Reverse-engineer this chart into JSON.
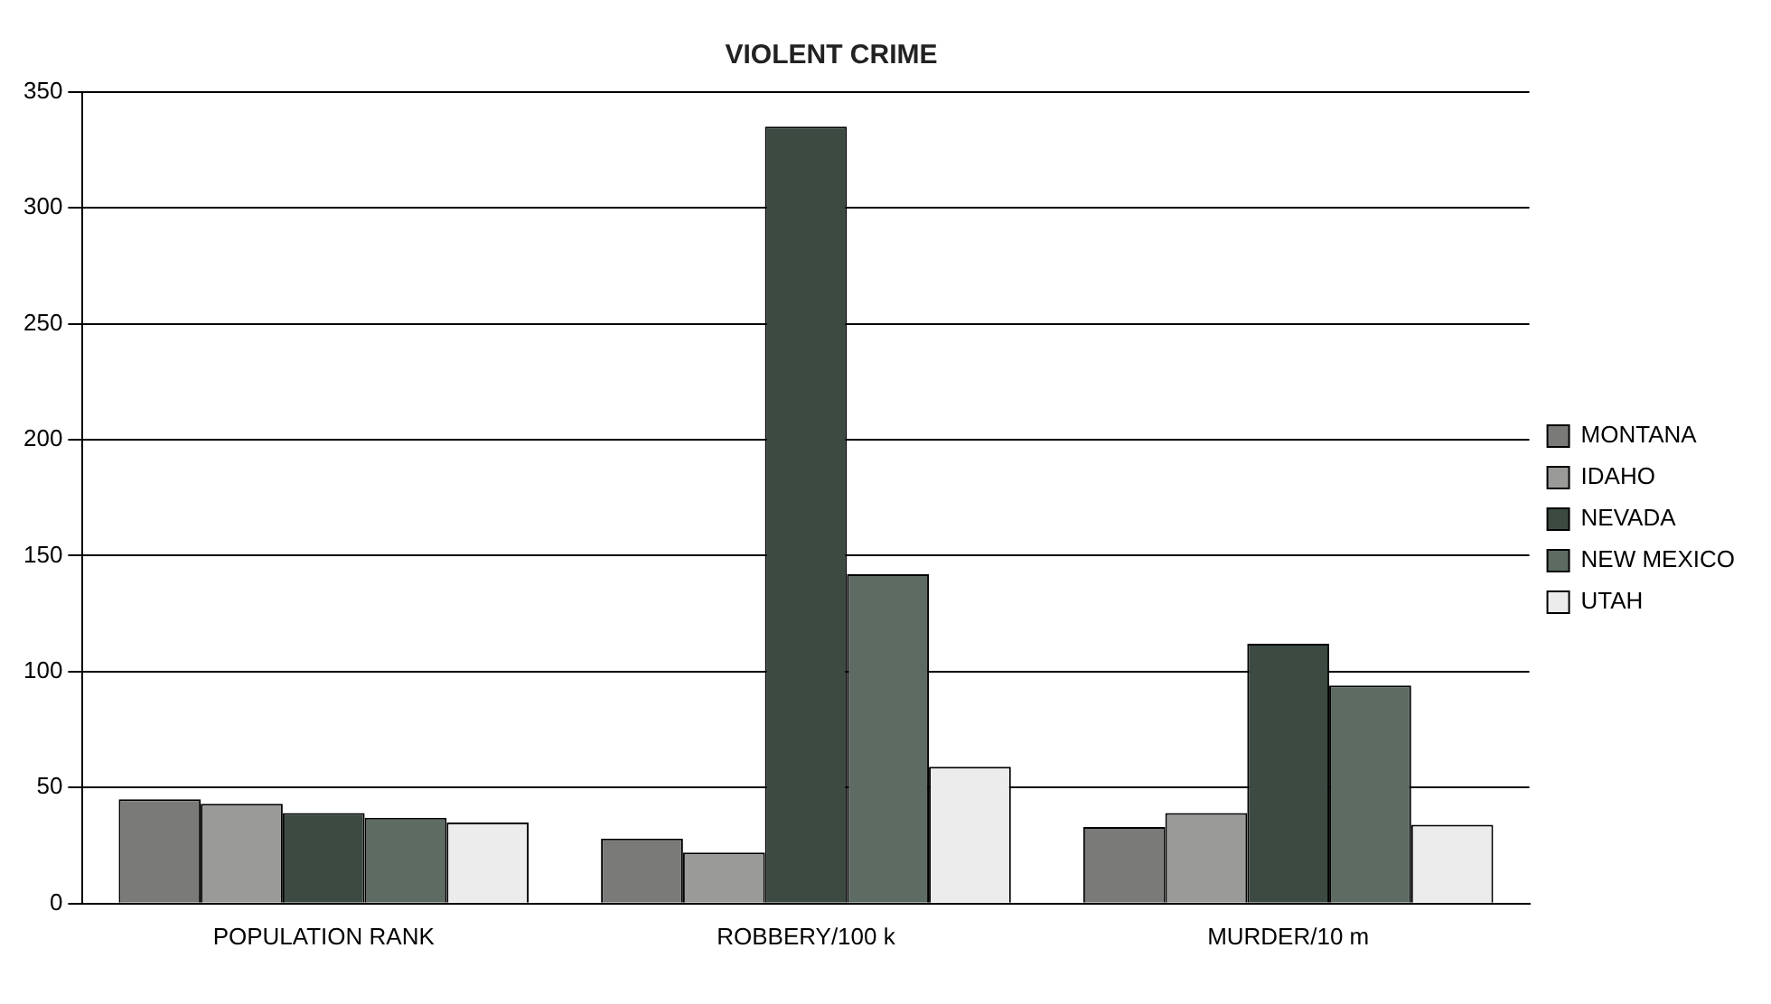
{
  "chart_data": {
    "type": "bar",
    "title": "VIOLENT CRIME",
    "categories": [
      "POPULATION RANK",
      "ROBBERY/100 k",
      "MURDER/10 m"
    ],
    "series": [
      {
        "name": "MONTANA",
        "color": "#7a7a78",
        "values": [
          45,
          28,
          33
        ]
      },
      {
        "name": "IDAHO",
        "color": "#9a9a98",
        "values": [
          43,
          22,
          39
        ]
      },
      {
        "name": "NEVADA",
        "color": "#3c4a42",
        "values": [
          39,
          335,
          112
        ]
      },
      {
        "name": "NEW MEXICO",
        "color": "#5e6b63",
        "values": [
          37,
          142,
          94
        ]
      },
      {
        "name": "UTAH",
        "color": "#ececec",
        "values": [
          35,
          59,
          34
        ]
      }
    ],
    "ylim": [
      0,
      350
    ],
    "yticks": [
      0,
      50,
      100,
      150,
      200,
      250,
      300,
      350
    ],
    "grid": "y",
    "legend": "right"
  }
}
